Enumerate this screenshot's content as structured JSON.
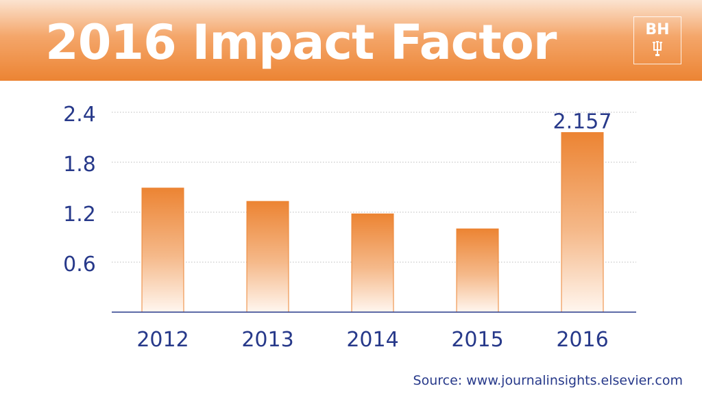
{
  "header": {
    "title": "2016 Impact Factor",
    "logo_text": "BH"
  },
  "colors": {
    "accent": "#ec8433",
    "axis": "#27398a",
    "text": "#27398a"
  },
  "chart_data": {
    "type": "bar",
    "title": "2016 Impact Factor",
    "xlabel": "",
    "ylabel": "",
    "categories": [
      "2012",
      "2013",
      "2014",
      "2015",
      "2016"
    ],
    "values": [
      1.49,
      1.33,
      1.18,
      1.0,
      2.157
    ],
    "ylim": [
      0,
      2.4
    ],
    "yticks": [
      0.6,
      1.2,
      1.8,
      2.4
    ],
    "ytick_labels": [
      "0.6",
      "1.2",
      "1.8",
      "2.4"
    ],
    "grid": true,
    "data_labels": [
      {
        "category": "2016",
        "text": "2.157"
      }
    ]
  },
  "footer": {
    "source": "Source: www.journalinsights.elsevier.com"
  }
}
